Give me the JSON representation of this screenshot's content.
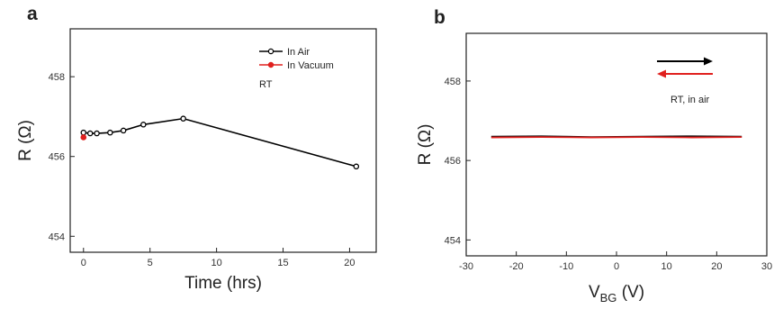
{
  "chart_data": [
    {
      "panel": "a",
      "type": "line",
      "xlabel": "Time (hrs)",
      "ylabel": "R (Ω)",
      "xlim": [
        -1,
        22
      ],
      "ylim": [
        453.6,
        459.2
      ],
      "xticks": [
        0,
        5,
        10,
        15,
        20
      ],
      "yticks": [
        454,
        456,
        458
      ],
      "grid": false,
      "legend_placement": "top-right",
      "annotation": "RT",
      "series": [
        {
          "name": "In Air",
          "color": "#000000",
          "x": [
            0,
            0.5,
            1,
            2,
            3,
            4.5,
            7.5,
            20.5
          ],
          "y": [
            456.6,
            456.58,
            456.58,
            456.6,
            456.65,
            456.8,
            456.95,
            455.75
          ]
        },
        {
          "name": "In Vacuum",
          "color": "#e0201e",
          "x": [
            0
          ],
          "y": [
            456.48
          ]
        }
      ]
    },
    {
      "panel": "b",
      "type": "line",
      "xlabel_main": "V",
      "xlabel_sub": "BG",
      "xlabel_unit": " (V)",
      "ylabel": "R (Ω)",
      "xlim": [
        -30,
        30
      ],
      "ylim": [
        453.6,
        459.2
      ],
      "xticks": [
        -30,
        -20,
        -10,
        0,
        10,
        20,
        30
      ],
      "yticks": [
        454,
        456,
        458
      ],
      "grid": false,
      "annotation": "RT, in air",
      "sweep_arrows": [
        {
          "direction": "forward",
          "color": "#000000"
        },
        {
          "direction": "backward",
          "color": "#e0201e"
        }
      ],
      "series": [
        {
          "color": "#000000",
          "x": [
            -25,
            -15,
            -5,
            5,
            15,
            25
          ],
          "y": [
            456.6,
            456.61,
            456.59,
            456.6,
            456.61,
            456.6
          ]
        },
        {
          "color": "#e0201e",
          "x": [
            -25,
            -15,
            -5,
            5,
            15,
            25
          ],
          "y": [
            456.58,
            456.59,
            456.58,
            456.59,
            456.58,
            456.59
          ]
        }
      ]
    }
  ]
}
